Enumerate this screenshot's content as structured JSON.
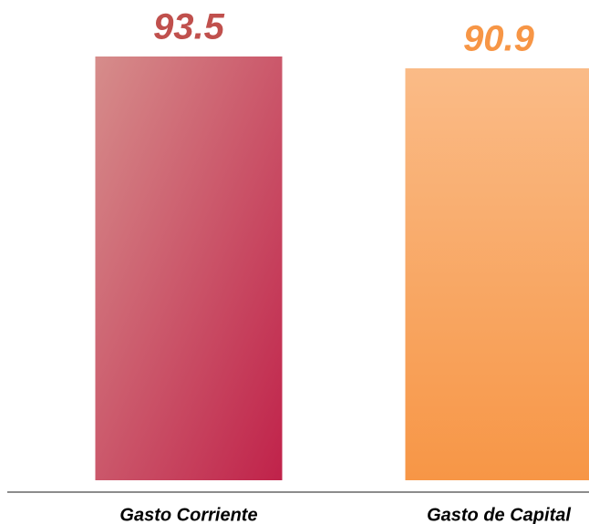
{
  "chart_data": {
    "type": "bar",
    "categories": [
      "Gasto Corriente",
      "Gasto de Capital"
    ],
    "values": [
      93.5,
      90.9
    ],
    "colors": [
      "#c0504d",
      "#f79646"
    ]
  }
}
